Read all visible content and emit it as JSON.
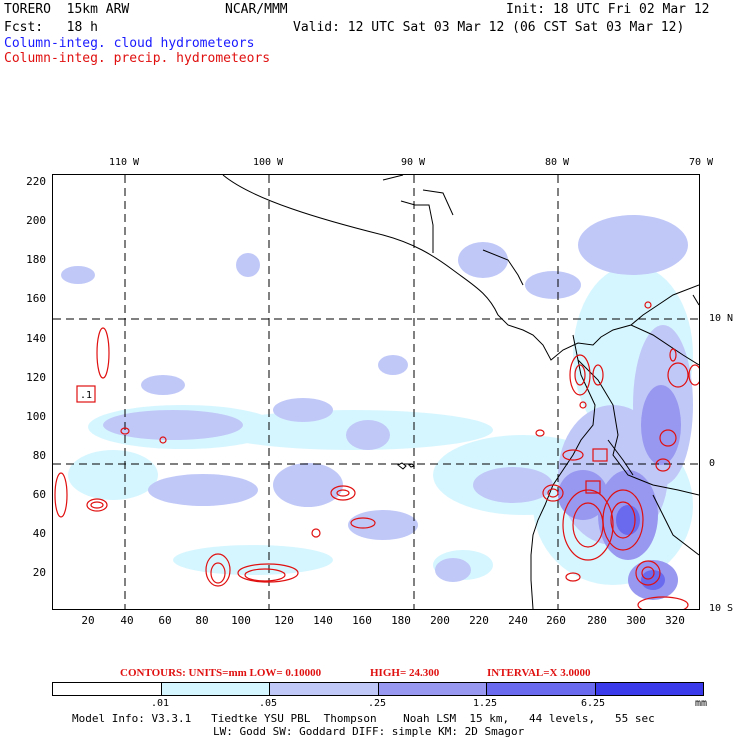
{
  "header": {
    "model": "TORERO  15km ARW",
    "center": "NCAR/MMM",
    "init": "Init: 18 UTC Fri 02 Mar 12",
    "fcst": "Fcst:   18 h",
    "valid": "Valid: 12 UTC Sat 03 Mar 12 (06 CST Sat 03 Mar 12)",
    "field_cloud": "Column-integ. cloud hydrometeors",
    "field_precip": "Column-integ. precip. hydrometeors"
  },
  "colors": {
    "cloud": "#1a1aff",
    "precip": "#e01010"
  },
  "lon_labels": [
    "110 W",
    "100 W",
    "90 W",
    "80 W",
    "70 W"
  ],
  "lat_labels": [
    "10 N",
    "0",
    "10 S"
  ],
  "y_ticks": [
    "220",
    "200",
    "180",
    "160",
    "140",
    "120",
    "100",
    "80",
    "60",
    "40",
    "20"
  ],
  "x_ticks": [
    "20",
    "40",
    "60",
    "80",
    "100",
    "120",
    "140",
    "160",
    "180",
    "200",
    "220",
    "240",
    "260",
    "280",
    "300",
    "320"
  ],
  "max_label": ".1",
  "contours": {
    "units": "CONTOURS:  UNITS=mm  LOW= 0.10000",
    "high": "HIGH=  24.300",
    "interval": "INTERVAL=X  3.0000"
  },
  "colorbar": {
    "labels": [
      ".01",
      ".05",
      ".25",
      "1.25",
      "6.25"
    ],
    "unit": "mm",
    "colors": [
      "#ffffff",
      "#d6f6ff",
      "#c0c8f8",
      "#9898f0",
      "#6a6aee",
      "#3a3aea"
    ]
  },
  "footer": {
    "line1": "Model Info: V3.3.1   Tiedtke YSU PBL  Thompson    Noah LSM  15 km,   44 levels,   55 sec",
    "line2": "LW: Godd SW: Goddard DIFF: simple KM: 2D Smagor"
  }
}
